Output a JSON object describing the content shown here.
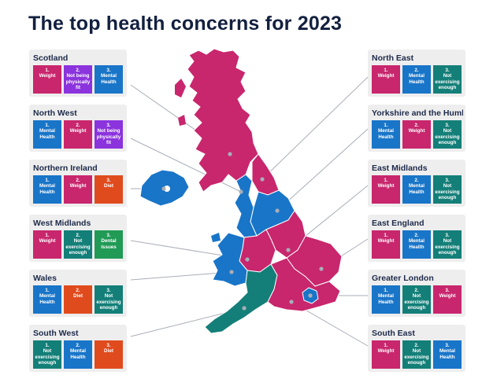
{
  "title": "The top health concerns for 2023",
  "colors": {
    "Weight": "#c8266d",
    "Mental Health": "#1975c8",
    "Not being physically fit": "#8b33dd",
    "Diet": "#e04b1e",
    "Not exercising enough": "#137f78",
    "Dental issues": "#209a55"
  },
  "regions": [
    {
      "name": "Scotland",
      "concerns": [
        "Weight",
        "Not being physically fit",
        "Mental Health"
      ]
    },
    {
      "name": "North West",
      "concerns": [
        "Mental Health",
        "Weight",
        "Not being physically fit"
      ]
    },
    {
      "name": "Northern Ireland",
      "concerns": [
        "Mental Health",
        "Weight",
        "Diet"
      ]
    },
    {
      "name": "West Midlands",
      "concerns": [
        "Weight",
        "Not exercising enough",
        "Dental issues"
      ]
    },
    {
      "name": "Wales",
      "concerns": [
        "Mental Health",
        "Diet",
        "Not exercising enough"
      ]
    },
    {
      "name": "South West",
      "concerns": [
        "Not exercising enough",
        "Mental Health",
        "Diet"
      ]
    },
    {
      "name": "North East",
      "concerns": [
        "Weight",
        "Mental Health",
        "Not exercising enough"
      ]
    },
    {
      "name": "Yorkshire and the Humber",
      "concerns": [
        "Mental Health",
        "Weight",
        "Not exercising enough"
      ]
    },
    {
      "name": "East Midlands",
      "concerns": [
        "Weight",
        "Mental Health",
        "Not exercising enough"
      ]
    },
    {
      "name": "East England",
      "concerns": [
        "Weight",
        "Mental Health",
        "Not exercising enough"
      ]
    },
    {
      "name": "Greater London",
      "concerns": [
        "Mental Health",
        "Not exercising enough",
        "Weight"
      ]
    },
    {
      "name": "South East",
      "concerns": [
        "Weight",
        "Not exercising enough",
        "Mental Health"
      ]
    }
  ]
}
